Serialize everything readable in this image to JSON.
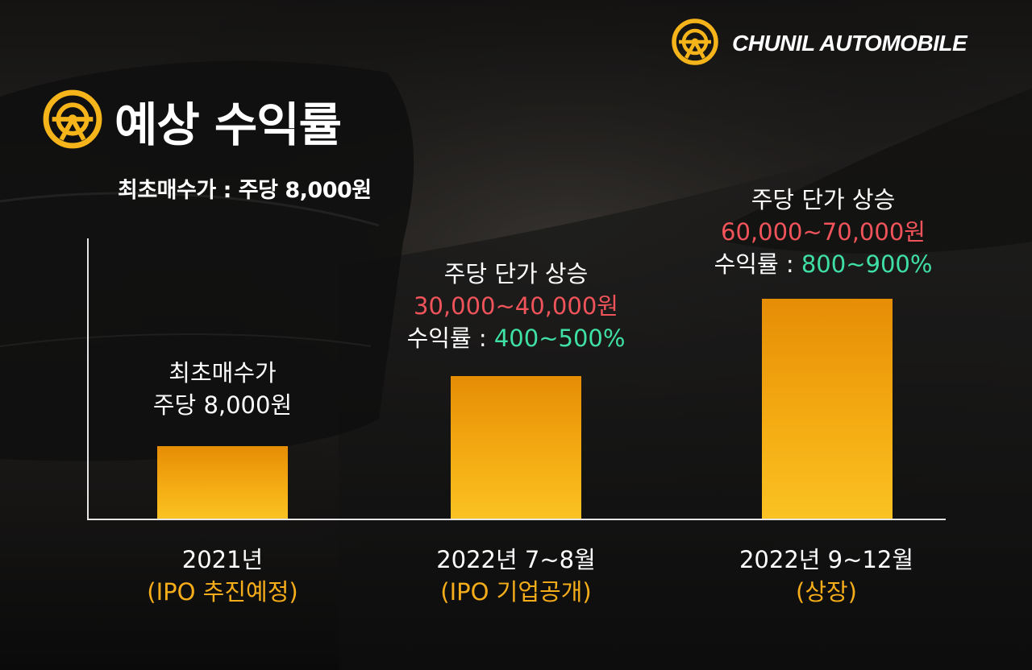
{
  "brand": {
    "name": "CHUNIL AUTOMOBILE",
    "logo_icon": "wheel-logo-icon",
    "logo_color": "#F5B41A"
  },
  "header": {
    "title": "예상 수익률",
    "title_icon": "wheel-logo-icon",
    "subtitle": "최초매수가 : 주당 8,000원"
  },
  "colors": {
    "bar_top": "#E68D06",
    "bar_bottom": "#FAC223",
    "price": "#F0545A",
    "rate": "#3FE0A5",
    "stage": "#F6AD1A"
  },
  "chart_data": {
    "type": "bar",
    "categories": [
      "2021년 (IPO 추진예정)",
      "2022년 7~8월 (IPO 기업공개)",
      "2022년 9~12월 (상장)"
    ],
    "values": [
      8000,
      35000,
      65000
    ],
    "values_note": "주당 가격 (원)",
    "xlabel": "",
    "ylabel": "",
    "grid": false,
    "bars": [
      {
        "year": "2021년",
        "stage": "(IPO 추진예정)",
        "line1": "최초매수가",
        "line2": "주당 8,000원"
      },
      {
        "year": "2022년 7~8월",
        "stage": "(IPO 기업공개)",
        "line1": "주당 단가 상승",
        "price": "30,000~40,000원",
        "rate_prefix": "수익률 : ",
        "rate_value": "400~500%"
      },
      {
        "year": "2022년 9~12월",
        "stage": "(상장)",
        "line1": "주당 단가 상승",
        "price": "60,000~70,000원",
        "rate_prefix": "수익률 : ",
        "rate_value": "800~900%"
      }
    ]
  }
}
